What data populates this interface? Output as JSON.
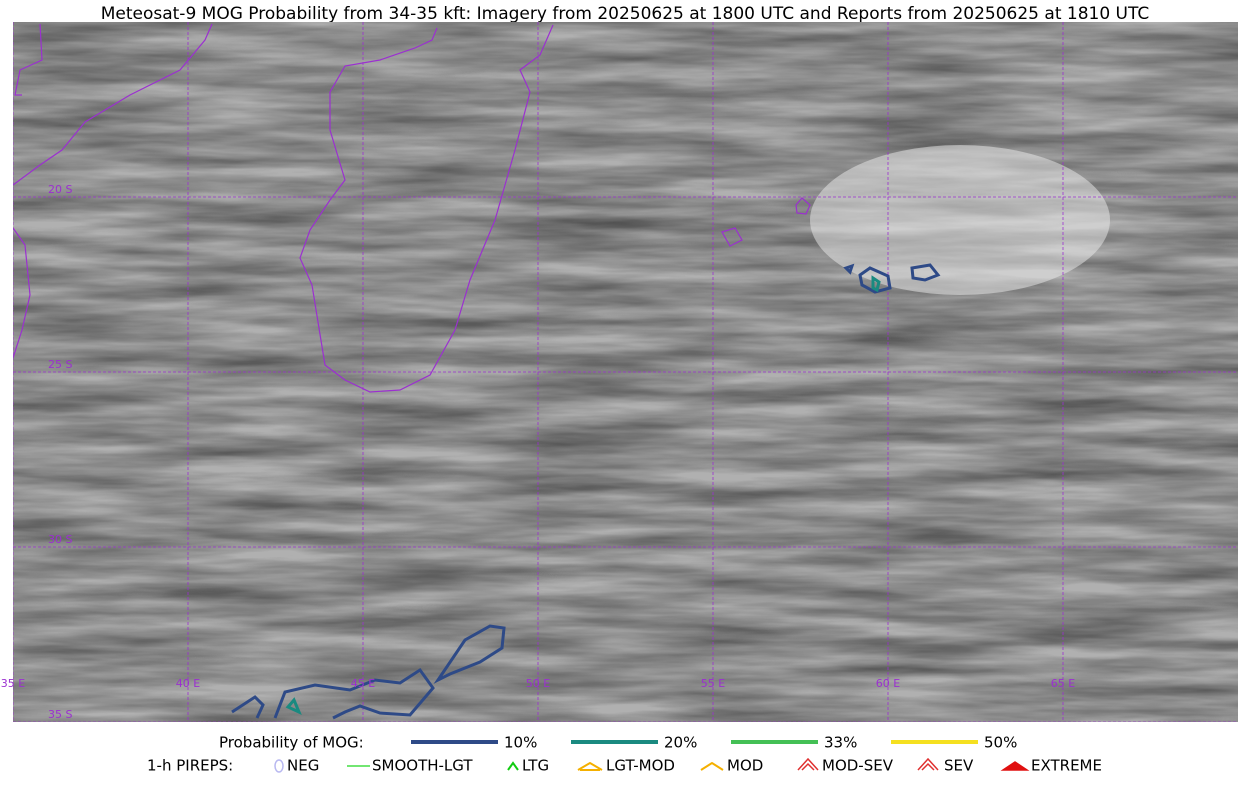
{
  "title": "Meteosat-9 MOG Probability from 34-35 kft: Imagery from 20250625 at 1800 UTC and Reports from 20250625 at 1810 UTC",
  "map": {
    "lon_labels": [
      "35 E",
      "40 E",
      "45 E",
      "50 E",
      "55 E",
      "60 E",
      "65 E"
    ],
    "lat_labels": [
      "20 S",
      "25 S",
      "30 S",
      "35 S"
    ],
    "grid_color": "#9b30d0"
  },
  "legend": {
    "probability": {
      "label": "Probability of MOG:",
      "items": [
        {
          "label": "10%",
          "color": "#2e4a87"
        },
        {
          "label": "20%",
          "color": "#1a8a80"
        },
        {
          "label": "33%",
          "color": "#44c055"
        },
        {
          "label": "50%",
          "color": "#f5e020"
        }
      ]
    },
    "pireps": {
      "label": "1-h PIREPS:",
      "items": [
        {
          "label": "NEG",
          "color": "#b8b8f0"
        },
        {
          "label": "SMOOTH-LGT",
          "color": "#44dd44"
        },
        {
          "label": "LTG",
          "color": "#11cc11"
        },
        {
          "label": "LGT-MOD",
          "color": "#f5b000"
        },
        {
          "label": "MOD",
          "color": "#f5b000"
        },
        {
          "label": "MOD-SEV",
          "color": "#e03030"
        },
        {
          "label": "SEV",
          "color": "#e03030"
        },
        {
          "label": "EXTREME",
          "color": "#e01010"
        }
      ]
    }
  }
}
